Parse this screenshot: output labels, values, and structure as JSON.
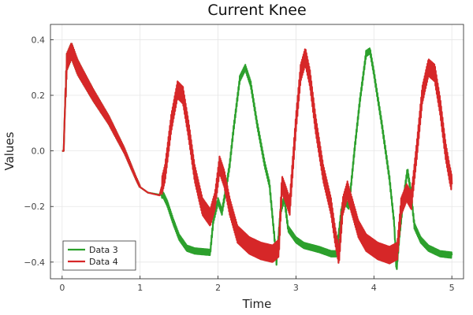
{
  "chart_data": {
    "type": "line",
    "title": "Current Knee",
    "xlabel": "Time",
    "ylabel": "Values",
    "xlim": [
      -0.15,
      5.15
    ],
    "ylim": [
      -0.46,
      0.455
    ],
    "xticks": [
      0,
      1,
      2,
      3,
      4,
      5
    ],
    "yticks": [
      -0.4,
      -0.2,
      0.0,
      0.2,
      0.4
    ],
    "ytick_labels": [
      "−0.4",
      "−0.2",
      "0.0",
      "0.2",
      "0.4"
    ],
    "grid": true,
    "legend_position": "bottom-left",
    "series": [
      {
        "name": "Data 3",
        "color": "#2ca02c",
        "oscillation_amplitude": 0.01,
        "points": [
          [
            0.0,
            0.0
          ],
          [
            0.02,
            0.0
          ],
          [
            0.03,
            0.1
          ],
          [
            0.06,
            0.32
          ],
          [
            0.12,
            0.36
          ],
          [
            0.2,
            0.3
          ],
          [
            0.4,
            0.2
          ],
          [
            0.6,
            0.11
          ],
          [
            0.8,
            0.0
          ],
          [
            0.95,
            -0.1
          ],
          [
            1.0,
            -0.13
          ],
          [
            1.1,
            -0.15
          ],
          [
            1.3,
            -0.16
          ],
          [
            1.35,
            -0.19
          ],
          [
            1.42,
            -0.25
          ],
          [
            1.5,
            -0.31
          ],
          [
            1.6,
            -0.35
          ],
          [
            1.7,
            -0.36
          ],
          [
            1.9,
            -0.365
          ],
          [
            1.94,
            -0.25
          ],
          [
            2.0,
            -0.18
          ],
          [
            2.05,
            -0.22
          ],
          [
            2.1,
            -0.14
          ],
          [
            2.15,
            -0.05
          ],
          [
            2.2,
            0.08
          ],
          [
            2.28,
            0.26
          ],
          [
            2.35,
            0.3
          ],
          [
            2.42,
            0.24
          ],
          [
            2.5,
            0.1
          ],
          [
            2.6,
            -0.05
          ],
          [
            2.66,
            -0.12
          ],
          [
            2.72,
            -0.3
          ],
          [
            2.75,
            -0.4
          ],
          [
            2.8,
            -0.22
          ],
          [
            2.85,
            -0.17
          ],
          [
            2.9,
            -0.28
          ],
          [
            3.0,
            -0.32
          ],
          [
            3.1,
            -0.34
          ],
          [
            3.3,
            -0.355
          ],
          [
            3.45,
            -0.37
          ],
          [
            3.52,
            -0.37
          ],
          [
            3.58,
            -0.22
          ],
          [
            3.62,
            -0.18
          ],
          [
            3.68,
            -0.2
          ],
          [
            3.75,
            0.0
          ],
          [
            3.82,
            0.18
          ],
          [
            3.9,
            0.35
          ],
          [
            3.95,
            0.36
          ],
          [
            4.0,
            0.28
          ],
          [
            4.1,
            0.1
          ],
          [
            4.2,
            -0.1
          ],
          [
            4.26,
            -0.26
          ],
          [
            4.29,
            -0.43
          ],
          [
            4.33,
            -0.3
          ],
          [
            4.38,
            -0.17
          ],
          [
            4.43,
            -0.07
          ],
          [
            4.47,
            -0.14
          ],
          [
            4.52,
            -0.27
          ],
          [
            4.6,
            -0.32
          ],
          [
            4.7,
            -0.35
          ],
          [
            4.85,
            -0.37
          ],
          [
            5.0,
            -0.375
          ]
        ]
      },
      {
        "name": "Data 4",
        "color": "#d62728",
        "oscillation_amplitude": 0.03,
        "points": [
          [
            0.0,
            0.0
          ],
          [
            0.02,
            0.0
          ],
          [
            0.03,
            0.1
          ],
          [
            0.06,
            0.32
          ],
          [
            0.12,
            0.36
          ],
          [
            0.2,
            0.3
          ],
          [
            0.4,
            0.2
          ],
          [
            0.6,
            0.11
          ],
          [
            0.8,
            0.0
          ],
          [
            0.95,
            -0.1
          ],
          [
            1.0,
            -0.13
          ],
          [
            1.1,
            -0.15
          ],
          [
            1.25,
            -0.16
          ],
          [
            1.32,
            -0.08
          ],
          [
            1.4,
            0.1
          ],
          [
            1.48,
            0.22
          ],
          [
            1.55,
            0.2
          ],
          [
            1.62,
            0.08
          ],
          [
            1.7,
            -0.08
          ],
          [
            1.8,
            -0.2
          ],
          [
            1.9,
            -0.24
          ],
          [
            1.96,
            -0.18
          ],
          [
            2.02,
            -0.05
          ],
          [
            2.08,
            -0.1
          ],
          [
            2.15,
            -0.2
          ],
          [
            2.25,
            -0.3
          ],
          [
            2.4,
            -0.34
          ],
          [
            2.55,
            -0.36
          ],
          [
            2.7,
            -0.37
          ],
          [
            2.78,
            -0.35
          ],
          [
            2.82,
            -0.12
          ],
          [
            2.86,
            -0.15
          ],
          [
            2.92,
            -0.2
          ],
          [
            3.0,
            0.1
          ],
          [
            3.06,
            0.28
          ],
          [
            3.12,
            0.34
          ],
          [
            3.18,
            0.26
          ],
          [
            3.25,
            0.1
          ],
          [
            3.35,
            -0.08
          ],
          [
            3.45,
            -0.2
          ],
          [
            3.5,
            -0.3
          ],
          [
            3.55,
            -0.38
          ],
          [
            3.6,
            -0.2
          ],
          [
            3.66,
            -0.14
          ],
          [
            3.72,
            -0.2
          ],
          [
            3.8,
            -0.28
          ],
          [
            3.9,
            -0.33
          ],
          [
            4.05,
            -0.36
          ],
          [
            4.2,
            -0.375
          ],
          [
            4.3,
            -0.36
          ],
          [
            4.35,
            -0.2
          ],
          [
            4.42,
            -0.15
          ],
          [
            4.48,
            -0.18
          ],
          [
            4.55,
            0.0
          ],
          [
            4.62,
            0.2
          ],
          [
            4.7,
            0.3
          ],
          [
            4.78,
            0.28
          ],
          [
            4.85,
            0.16
          ],
          [
            4.92,
            0.0
          ],
          [
            4.97,
            -0.08
          ],
          [
            5.0,
            -0.12
          ]
        ]
      }
    ]
  }
}
